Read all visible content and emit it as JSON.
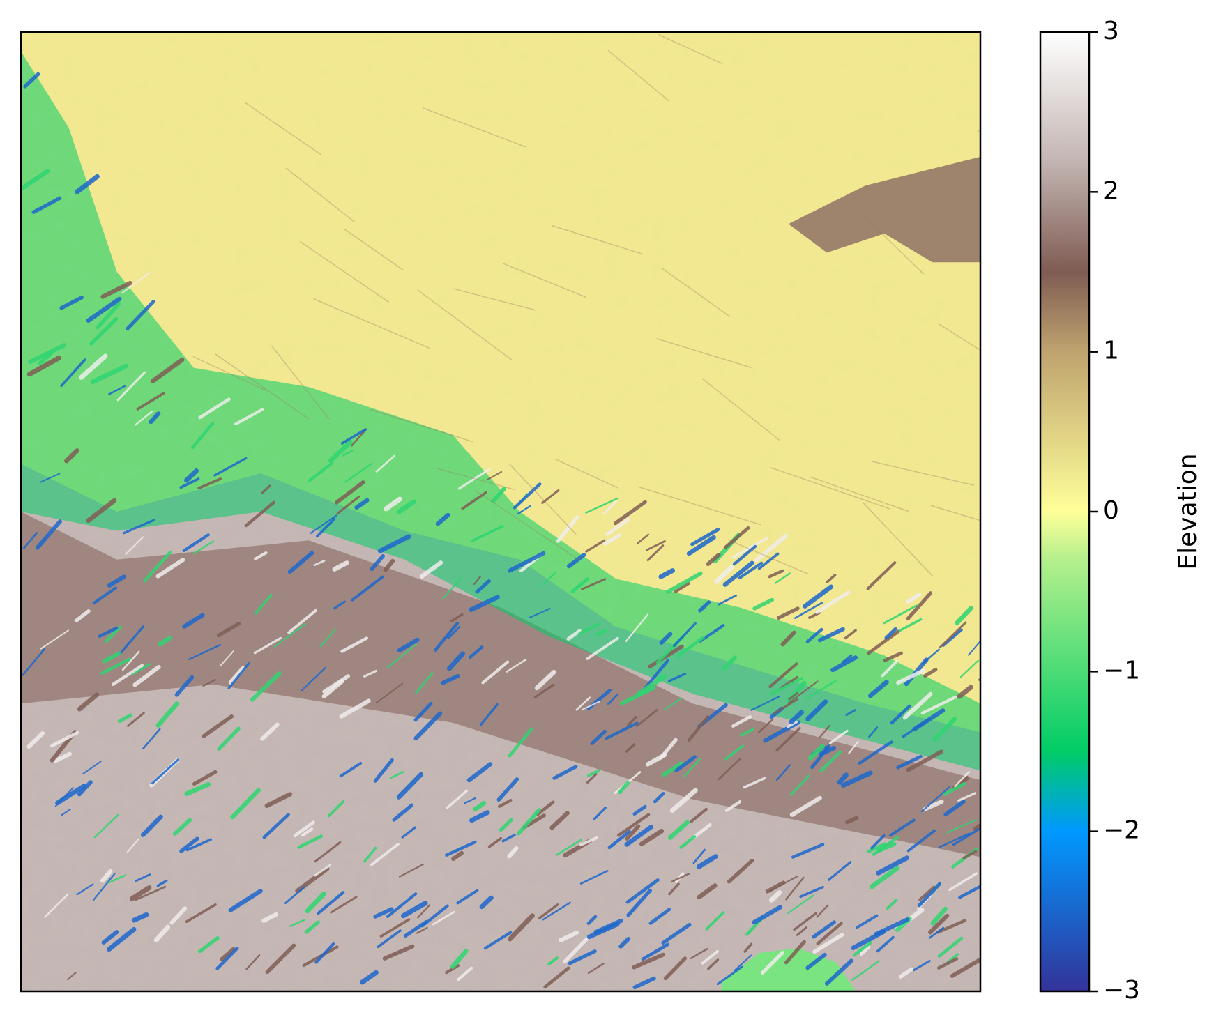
{
  "chart_data": {
    "type": "heatmap",
    "title": "",
    "xlabel": "",
    "ylabel": "",
    "colormap": "terrain",
    "colormap_stops": [
      {
        "value": -3,
        "color": "#333399"
      },
      {
        "value": -2,
        "color": "#0099ff"
      },
      {
        "value": -1.5,
        "color": "#00cc66"
      },
      {
        "value": -0.3,
        "color": "#b4f08c"
      },
      {
        "value": 0,
        "color": "#ffff99"
      },
      {
        "value": 1,
        "color": "#bfa36f"
      },
      {
        "value": 1.5,
        "color": "#7f5c53"
      },
      {
        "value": 2.2,
        "color": "#c4b6b3"
      },
      {
        "value": 3,
        "color": "#ffffff"
      }
    ],
    "colorbar": {
      "label": "Elevation",
      "vmin": -3,
      "vmax": 3,
      "ticks": [
        -3,
        -2,
        -1,
        0,
        1,
        2,
        3
      ],
      "tick_labels": [
        "−3",
        "−2",
        "−1",
        "0",
        "1",
        "2",
        "3"
      ]
    },
    "x_ticks": [],
    "y_ticks": [],
    "regions": [
      {
        "name": "northern plain",
        "typical_value": 0.1,
        "texture": "smooth, faint drainage lines"
      },
      {
        "name": "scarp transition band",
        "typical_value": -1.5,
        "texture": "blue/green channels across brown ridges"
      },
      {
        "name": "southern highlands",
        "typical_value": 2.2,
        "texture": "brown and white dissected ridges"
      },
      {
        "name": "northeast ridge cluster",
        "typical_value": 1.6,
        "texture": "brown patch"
      },
      {
        "name": "southeast lake patch",
        "typical_value": -0.7,
        "texture": "flat green"
      }
    ]
  }
}
